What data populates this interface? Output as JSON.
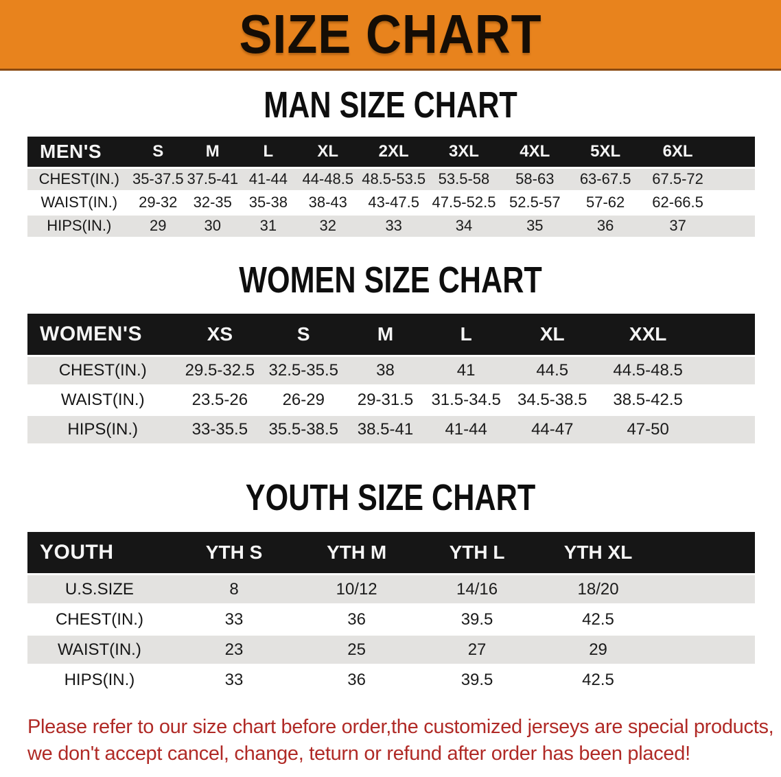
{
  "banner": {
    "title": "SIZE CHART"
  },
  "colors": {
    "banner_bg": "#E8831D",
    "banner_border": "#8A4A12",
    "header_band": "#161616",
    "row_stripe": "#E3E2E0",
    "footer_text": "#B02A26"
  },
  "tables": [
    {
      "id": "mens",
      "heading": "MAN SIZE CHART",
      "header_label": "MEN'S",
      "columns": [
        "S",
        "M",
        "L",
        "XL",
        "2XL",
        "3XL",
        "4XL",
        "5XL",
        "6XL"
      ],
      "rows": [
        {
          "label": "CHEST(IN.)",
          "values": [
            "35-37.5",
            "37.5-41",
            "41-44",
            "44-48.5",
            "48.5-53.5",
            "53.5-58",
            "58-63",
            "63-67.5",
            "67.5-72"
          ]
        },
        {
          "label": "WAIST(IN.)",
          "values": [
            "29-32",
            "32-35",
            "35-38",
            "38-43",
            "43-47.5",
            "47.5-52.5",
            "52.5-57",
            "57-62",
            "62-66.5"
          ]
        },
        {
          "label": "HIPS(IN.)",
          "values": [
            "29",
            "30",
            "31",
            "32",
            "33",
            "34",
            "35",
            "36",
            "37"
          ]
        }
      ]
    },
    {
      "id": "womens",
      "heading": "WOMEN SIZE CHART",
      "header_label": "WOMEN'S",
      "columns": [
        "XS",
        "S",
        "M",
        "L",
        "XL",
        "XXL"
      ],
      "rows": [
        {
          "label": "CHEST(IN.)",
          "values": [
            "29.5-32.5",
            "32.5-35.5",
            "38",
            "41",
            "44.5",
            "44.5-48.5"
          ]
        },
        {
          "label": "WAIST(IN.)",
          "values": [
            "23.5-26",
            "26-29",
            "29-31.5",
            "31.5-34.5",
            "34.5-38.5",
            "38.5-42.5"
          ]
        },
        {
          "label": "HIPS(IN.)",
          "values": [
            "33-35.5",
            "35.5-38.5",
            "38.5-41",
            "41-44",
            "44-47",
            "47-50"
          ]
        }
      ]
    },
    {
      "id": "youth",
      "heading": "YOUTH SIZE CHART",
      "header_label": "YOUTH",
      "columns": [
        "YTH S",
        "YTH M",
        "YTH L",
        "YTH XL"
      ],
      "rows": [
        {
          "label": "U.S.SIZE",
          "values": [
            "8",
            "10/12",
            "14/16",
            "18/20"
          ]
        },
        {
          "label": "CHEST(IN.)",
          "values": [
            "33",
            "36",
            "39.5",
            "42.5"
          ]
        },
        {
          "label": "WAIST(IN.)",
          "values": [
            "23",
            "25",
            "27",
            "29"
          ]
        },
        {
          "label": "HIPS(IN.)",
          "values": [
            "33",
            "36",
            "39.5",
            "42.5"
          ]
        }
      ]
    }
  ],
  "footer": {
    "lines": [
      "Please refer to our size chart before order,the customized jerseys are special products,",
      "we don't accept cancel, change, teturn or refund after order has been placed!"
    ]
  }
}
